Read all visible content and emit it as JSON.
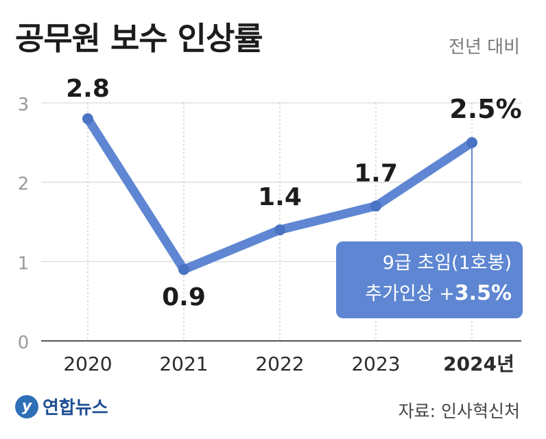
{
  "title": "공무원 보수 인상률",
  "subtitle": "전년 대비",
  "source": "자료: 인사혁신처",
  "logo": {
    "text": "연합뉴스",
    "icon": "yonhap-logo-icon"
  },
  "callout": {
    "line1": "9급 초임(1호봉)",
    "line2_prefix": "추가인상 +",
    "line2_value": "3.5%"
  },
  "colors": {
    "line": "#5e86d2",
    "callout_bg": "#5e86d2",
    "grid": "#d0d0d0"
  },
  "chart_data": {
    "type": "line",
    "x": [
      "2020",
      "2021",
      "2022",
      "2023",
      "2024년"
    ],
    "values": [
      2.8,
      0.9,
      1.4,
      1.7,
      2.5
    ],
    "data_labels": [
      "2.8",
      "0.9",
      "1.4",
      "1.7",
      "2.5%"
    ],
    "yticks": [
      "0",
      "1",
      "2",
      "3"
    ],
    "ylim": [
      0,
      3
    ],
    "xlabel": "",
    "ylabel": "",
    "grid": true
  }
}
